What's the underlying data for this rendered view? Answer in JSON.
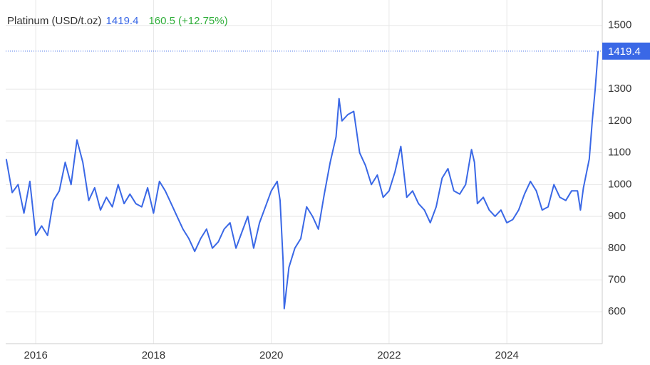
{
  "chart_data": {
    "type": "line",
    "title": "Platinum (USD/t.oz)",
    "last_price": 1419.4,
    "change": 160.5,
    "change_pct": "(+12.75%)",
    "x": [
      2015.5,
      2015.6,
      2015.7,
      2015.8,
      2015.9,
      2016.0,
      2016.1,
      2016.2,
      2016.3,
      2016.4,
      2016.5,
      2016.6,
      2016.7,
      2016.8,
      2016.9,
      2017.0,
      2017.1,
      2017.2,
      2017.3,
      2017.4,
      2017.5,
      2017.6,
      2017.7,
      2017.8,
      2017.9,
      2018.0,
      2018.1,
      2018.2,
      2018.3,
      2018.4,
      2018.5,
      2018.6,
      2018.7,
      2018.8,
      2018.9,
      2019.0,
      2019.1,
      2019.2,
      2019.3,
      2019.4,
      2019.5,
      2019.6,
      2019.7,
      2019.8,
      2019.9,
      2020.0,
      2020.1,
      2020.15,
      2020.2,
      2020.22,
      2020.3,
      2020.4,
      2020.5,
      2020.6,
      2020.7,
      2020.8,
      2020.9,
      2021.0,
      2021.1,
      2021.15,
      2021.2,
      2021.3,
      2021.4,
      2021.5,
      2021.6,
      2021.7,
      2021.8,
      2021.9,
      2022.0,
      2022.1,
      2022.2,
      2022.3,
      2022.4,
      2022.5,
      2022.6,
      2022.7,
      2022.8,
      2022.9,
      2023.0,
      2023.1,
      2023.2,
      2023.3,
      2023.4,
      2023.45,
      2023.5,
      2023.6,
      2023.7,
      2023.8,
      2023.9,
      2024.0,
      2024.1,
      2024.2,
      2024.3,
      2024.4,
      2024.5,
      2024.6,
      2024.7,
      2024.8,
      2024.9,
      2025.0,
      2025.1,
      2025.2,
      2025.25,
      2025.3,
      2025.4,
      2025.45,
      2025.5,
      2025.55
    ],
    "series": [
      {
        "name": "Platinum",
        "color": "#3a68e6",
        "values": [
          1080,
          975,
          1000,
          910,
          1010,
          840,
          870,
          840,
          950,
          980,
          1070,
          1000,
          1140,
          1070,
          950,
          990,
          920,
          960,
          930,
          1000,
          940,
          970,
          940,
          930,
          990,
          910,
          1010,
          980,
          940,
          900,
          860,
          830,
          790,
          830,
          860,
          800,
          820,
          860,
          880,
          800,
          850,
          900,
          800,
          880,
          930,
          980,
          1010,
          950,
          760,
          610,
          740,
          800,
          830,
          930,
          900,
          860,
          970,
          1070,
          1150,
          1270,
          1200,
          1220,
          1230,
          1100,
          1060,
          1000,
          1030,
          960,
          980,
          1040,
          1120,
          960,
          980,
          940,
          920,
          880,
          930,
          1020,
          1050,
          980,
          970,
          1000,
          1110,
          1070,
          940,
          960,
          920,
          900,
          920,
          880,
          890,
          920,
          970,
          1010,
          980,
          920,
          930,
          1000,
          960,
          950,
          980,
          980,
          920,
          990,
          1080,
          1200,
          1300,
          1419.4
        ]
      }
    ],
    "xlim": [
      2015.49,
      2025.62
    ],
    "xticks": [
      2016,
      2018,
      2020,
      2022,
      2024
    ],
    "ylim": [
      500,
      1580
    ],
    "yticks": [
      600,
      700,
      800,
      900,
      1000,
      1100,
      1200,
      1300,
      1500
    ],
    "grid": true
  }
}
